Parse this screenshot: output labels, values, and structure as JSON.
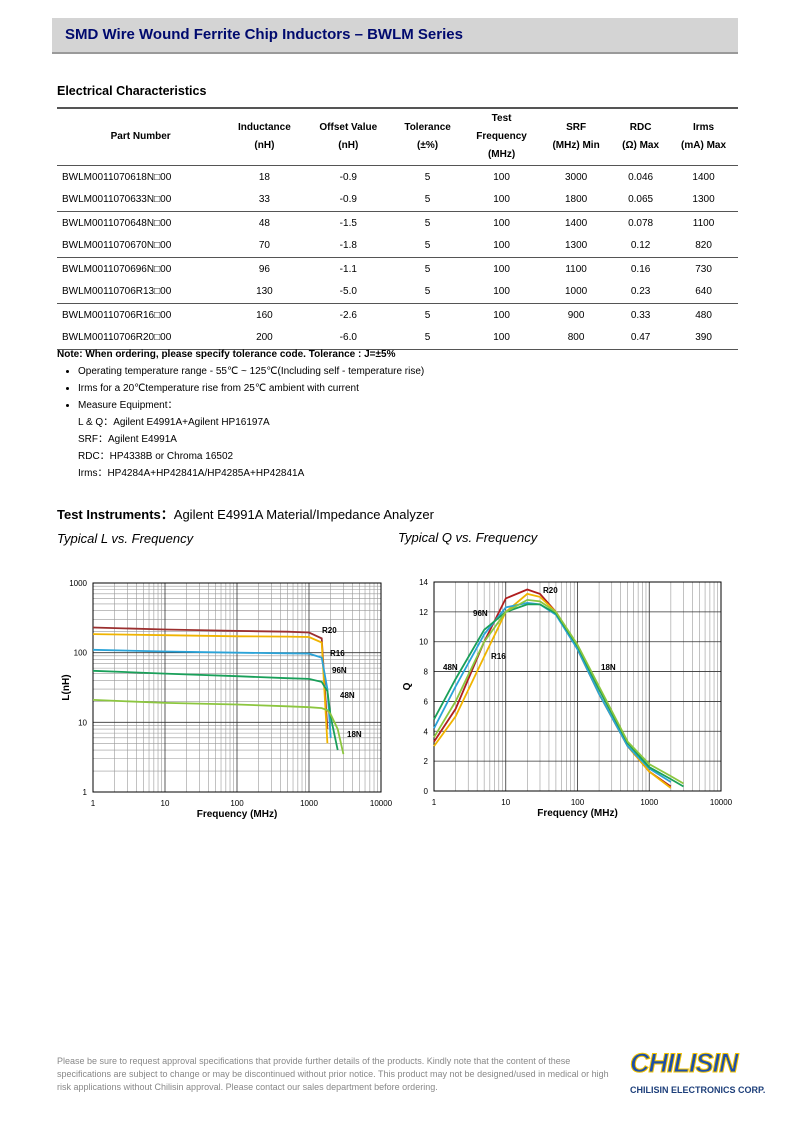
{
  "header": {
    "title": "SMD Wire Wound Ferrite Chip Inductors – BWLM Series"
  },
  "section_title": "Electrical Characteristics",
  "table": {
    "headers": [
      "Part Number",
      "Inductance\n(nH)",
      "Offset Value\n(nH)",
      "Tolerance\n(±%)",
      "Test\nFrequency\n(MHz)",
      "SRF\n(MHz) Min",
      "RDC\n(Ω) Max",
      "Irms\n(mA) Max"
    ],
    "rows": [
      [
        "BWLM0011070618N□00",
        "18",
        "-0.9",
        "5",
        "100",
        "3000",
        "0.046",
        "1400"
      ],
      [
        "BWLM0011070633N□00",
        "33",
        "-0.9",
        "5",
        "100",
        "1800",
        "0.065",
        "1300"
      ],
      [
        "BWLM0011070648N□00",
        "48",
        "-1.5",
        "5",
        "100",
        "1400",
        "0.078",
        "1100"
      ],
      [
        "BWLM0011070670N□00",
        "70",
        "-1.8",
        "5",
        "100",
        "1300",
        "0.12",
        "820"
      ],
      [
        "BWLM0011070696N□00",
        "96",
        "-1.1",
        "5",
        "100",
        "1100",
        "0.16",
        "730"
      ],
      [
        "BWLM00110706R13□00",
        "130",
        "-5.0",
        "5",
        "100",
        "1000",
        "0.23",
        "640"
      ],
      [
        "BWLM00110706R16□00",
        "160",
        "-2.6",
        "5",
        "100",
        "900",
        "0.33",
        "480"
      ],
      [
        "BWLM00110706R20□00",
        "200",
        "-6.0",
        "5",
        "100",
        "800",
        "0.47",
        "390"
      ]
    ]
  },
  "notes": {
    "note": "Note: When ordering, please specify tolerance code. Tolerance : J=±5%",
    "bullets": [
      "Operating temperature range - 55℃ ~ 125℃(Including self - temperature rise)",
      "Irms for a 20℃temperature rise from 25℃  ambient with current",
      "Measure Equipment："
    ],
    "equipment": [
      "L & Q：Agilent E4991A+Agilent HP16197A",
      "SRF：Agilent E4991A",
      "RDC：HP4338B or Chroma 16502",
      "Irms：HP4284A+HP42841A/HP4285A+HP42841A"
    ]
  },
  "instruments": {
    "label": "Test Instruments：",
    "text": "Agilent E4991A Material/Impedance Analyzer"
  },
  "chart_data": [
    {
      "type": "line",
      "title": "Typical L vs. Frequency",
      "x_label": "Frequency (MHz)",
      "y_label": "L(nH)",
      "x": [
        1,
        10,
        100,
        500,
        1000,
        1500,
        1800,
        2000,
        2500,
        3000
      ],
      "xlim": [
        1,
        10000
      ],
      "xticks": [
        1,
        10,
        100,
        1000,
        10000
      ],
      "ylim": [
        1,
        1000
      ],
      "yticks": [
        1,
        10,
        100,
        1000
      ],
      "log_x": true,
      "log_y": true,
      "grid": true,
      "minor_grid": true,
      "series": [
        {
          "name": "R20",
          "color": "#9b2f2f",
          "values": [
            230,
            215,
            205,
            200,
            195,
            160,
            8,
            null,
            null,
            null
          ]
        },
        {
          "name": "R16",
          "color": "#f0b400",
          "values": [
            185,
            178,
            172,
            170,
            168,
            140,
            5,
            null,
            null,
            null
          ]
        },
        {
          "name": "96N",
          "color": "#2aa3d8",
          "values": [
            110,
            104,
            100,
            98,
            97,
            85,
            30,
            6,
            null,
            null
          ]
        },
        {
          "name": "48N",
          "color": "#1aa05a",
          "values": [
            55,
            50,
            46,
            43,
            42,
            38,
            28,
            12,
            4,
            null
          ]
        },
        {
          "name": "18N",
          "color": "#8cc63f",
          "values": [
            21,
            19,
            18,
            17,
            16.5,
            16,
            15,
            13,
            8,
            3.5
          ]
        }
      ]
    },
    {
      "type": "line",
      "title": "Typical Q vs. Frequency",
      "x_label": "Frequency (MHz)",
      "y_label": "Q",
      "x": [
        1,
        2,
        5,
        10,
        20,
        30,
        50,
        100,
        200,
        500,
        1000,
        2000,
        3000
      ],
      "xlim": [
        1,
        10000
      ],
      "xticks": [
        1,
        10,
        100,
        1000,
        10000
      ],
      "ylim": [
        0,
        14
      ],
      "yticks": [
        0,
        2,
        4,
        6,
        8,
        10,
        12,
        14
      ],
      "log_x": true,
      "log_y": false,
      "grid": true,
      "minor_grid": true,
      "series": [
        {
          "name": "R20",
          "color": "#b01e1e",
          "values": [
            3.3,
            5.5,
            10,
            12.9,
            13.5,
            13.2,
            12,
            9.5,
            6.5,
            3,
            1.3,
            0.3,
            null
          ]
        },
        {
          "name": "R16",
          "color": "#f0b400",
          "values": [
            3.0,
            5,
            9,
            12,
            13.2,
            13,
            12,
            9.5,
            6.5,
            3,
            1.3,
            0.2,
            null
          ]
        },
        {
          "name": "96N",
          "color": "#2aa3d8",
          "values": [
            4.2,
            7,
            10.5,
            12.3,
            12.6,
            12.5,
            11.8,
            9.5,
            6.5,
            3,
            1.5,
            0.6,
            null
          ]
        },
        {
          "name": "48N",
          "color": "#1aa05a",
          "values": [
            4.8,
            7.5,
            10.8,
            12.0,
            12.5,
            12.5,
            11.9,
            9.7,
            6.8,
            3.2,
            1.6,
            0.8,
            0.3
          ]
        },
        {
          "name": "18N",
          "color": "#8cc63f",
          "values": [
            3.6,
            6,
            10,
            12,
            12.8,
            12.7,
            12,
            9.8,
            7,
            3.3,
            1.8,
            1,
            0.5
          ]
        }
      ]
    }
  ],
  "footer": {
    "disclaimer": "Please be sure to request approval specifications that provide further details of the products. Kindly note that the content of these specifications are subject to change or may be discontinued without prior notice. This product may not be designed/used in medical or high risk applications without Chilisin approval. Please contact our sales department before ordering.",
    "logo": "CHILISIN",
    "company": "CHILISIN ELECTRONICS CORP."
  }
}
